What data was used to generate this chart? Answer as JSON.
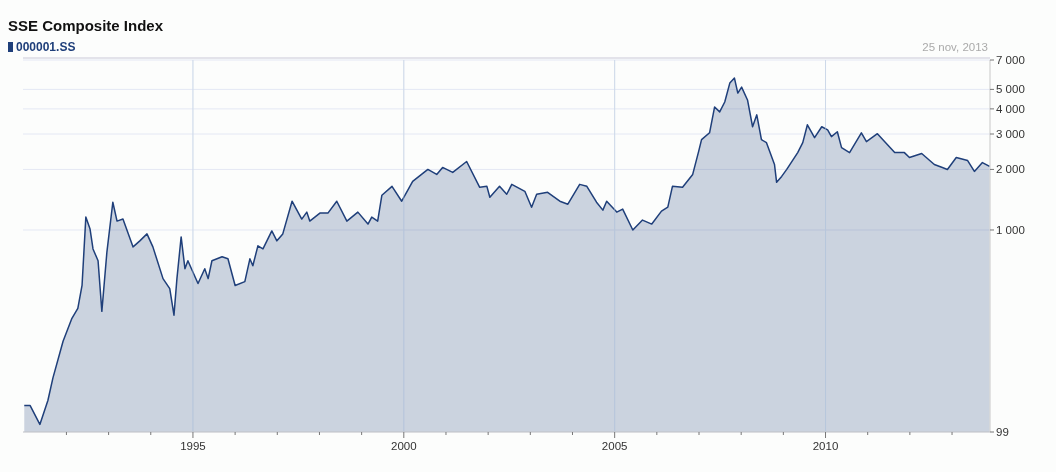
{
  "chart_data": {
    "type": "area",
    "title": "SSE Composite Index",
    "annotations": [
      "25 nov, 2013"
    ],
    "log": "y",
    "grid": true,
    "legend": "top left",
    "x": [
      1991.0,
      1991.14,
      1991.37,
      1991.56,
      1991.68,
      1991.92,
      1992.13,
      1992.27,
      1992.37,
      1992.46,
      1992.56,
      1992.63,
      1992.75,
      1992.84,
      1992.96,
      1993.1,
      1993.2,
      1993.34,
      1993.58,
      1993.74,
      1993.91,
      1994.05,
      1994.29,
      1994.45,
      1994.55,
      1994.62,
      1994.72,
      1994.81,
      1994.88,
      1995.12,
      1995.28,
      1995.36,
      1995.45,
      1995.69,
      1995.83,
      1996.0,
      1996.23,
      1996.35,
      1996.42,
      1996.54,
      1996.66,
      1996.87,
      1996.99,
      1997.13,
      1997.35,
      1997.58,
      1997.7,
      1997.77,
      1998.01,
      1998.2,
      1998.41,
      1998.65,
      1998.91,
      1999.15,
      1999.24,
      1999.38,
      1999.48,
      1999.72,
      1999.95,
      2000.21,
      2000.57,
      2000.78,
      2000.92,
      2001.16,
      2001.49,
      2001.8,
      2001.97,
      2002.04,
      2002.27,
      2002.44,
      2002.56,
      2002.87,
      2003.03,
      2003.15,
      2003.41,
      2003.7,
      2003.89,
      2004.17,
      2004.34,
      2004.57,
      2004.72,
      2004.81,
      2005.05,
      2005.19,
      2005.43,
      2005.66,
      2005.88,
      2006.11,
      2006.26,
      2006.37,
      2006.61,
      2006.85,
      2006.99,
      2007.06,
      2007.25,
      2007.37,
      2007.49,
      2007.61,
      2007.73,
      2007.84,
      2007.92,
      2008.01,
      2008.15,
      2008.27,
      2008.37,
      2008.48,
      2008.6,
      2008.79,
      2008.84,
      2008.96,
      2009.08,
      2009.34,
      2009.46,
      2009.57,
      2009.74,
      2009.91,
      2010.05,
      2010.14,
      2010.28,
      2010.38,
      2010.57,
      2010.85,
      2010.97,
      2011.23,
      2011.47,
      2011.64,
      2011.87,
      2011.99,
      2012.28,
      2012.58,
      2012.77,
      2012.89,
      2013.1,
      2013.37,
      2013.53,
      2013.72,
      2013.89
    ],
    "series": [
      {
        "name": "000001.SS",
        "color": "#1f3f7a",
        "values": [
          134,
          134,
          108,
          142,
          184,
          280,
          364,
          408,
          530,
          1159,
          1010,
          805,
          703,
          394,
          779,
          1374,
          1107,
          1133,
          824,
          883,
          956,
          824,
          573,
          511,
          377,
          573,
          924,
          642,
          703,
          542,
          642,
          573,
          703,
          736,
          719,
          530,
          554,
          719,
          664,
          834,
          805,
          989,
          883,
          956,
          1390,
          1133,
          1227,
          1107,
          1213,
          1213,
          1390,
          1107,
          1227,
          1070,
          1159,
          1107,
          1489,
          1648,
          1390,
          1745,
          2000,
          1889,
          2046,
          1933,
          2190,
          1630,
          1648,
          1455,
          1648,
          1505,
          1686,
          1557,
          1298,
          1505,
          1539,
          1390,
          1343,
          1686,
          1648,
          1374,
          1255,
          1390,
          1227,
          1270,
          1000,
          1120,
          1070,
          1241,
          1298,
          1648,
          1630,
          1889,
          2454,
          2812,
          3043,
          4090,
          3865,
          4329,
          5373,
          5690,
          4794,
          5134,
          4430,
          3260,
          3736,
          2812,
          2718,
          2117,
          1726,
          1846,
          2000,
          2425,
          2718,
          3334,
          2878,
          3260,
          3148,
          2911,
          3078,
          2566,
          2425,
          3043,
          2749,
          3011,
          2656,
          2425,
          2425,
          2291,
          2399,
          2117,
          2046,
          2000,
          2291,
          2214,
          1955,
          2164,
          2070
        ]
      }
    ],
    "xlim": [
      1990.97,
      2013.9
    ],
    "xticks": [
      {
        "value": 1992,
        "label": null
      },
      {
        "value": 1993,
        "label": null
      },
      {
        "value": 1994,
        "label": null
      },
      1995,
      {
        "value": 1996,
        "label": null
      },
      {
        "value": 1997,
        "label": null
      },
      {
        "value": 1998,
        "label": null
      },
      {
        "value": 1999,
        "label": null
      },
      2000,
      {
        "value": 2001,
        "label": null
      },
      {
        "value": 2002,
        "label": null
      },
      {
        "value": 2003,
        "label": null
      },
      {
        "value": 2004,
        "label": null
      },
      2005,
      {
        "value": 2006,
        "label": null
      },
      {
        "value": 2007,
        "label": null
      },
      {
        "value": 2008,
        "label": null
      },
      {
        "value": 2009,
        "label": null
      },
      2010,
      {
        "value": 2011,
        "label": null
      },
      {
        "value": 2012,
        "label": null
      },
      {
        "value": 2013,
        "label": null
      }
    ],
    "ylim": [
      99,
      7000
    ],
    "yticks": [
      99,
      {
        "value": 1000,
        "label": "1 000"
      },
      {
        "value": 2000,
        "label": "2 000"
      },
      {
        "value": 3000,
        "label": "3 000"
      },
      {
        "value": 4000,
        "label": "4 000"
      },
      {
        "value": 5000,
        "label": "5 000"
      },
      {
        "value": 7000,
        "label": "7 000"
      }
    ]
  }
}
